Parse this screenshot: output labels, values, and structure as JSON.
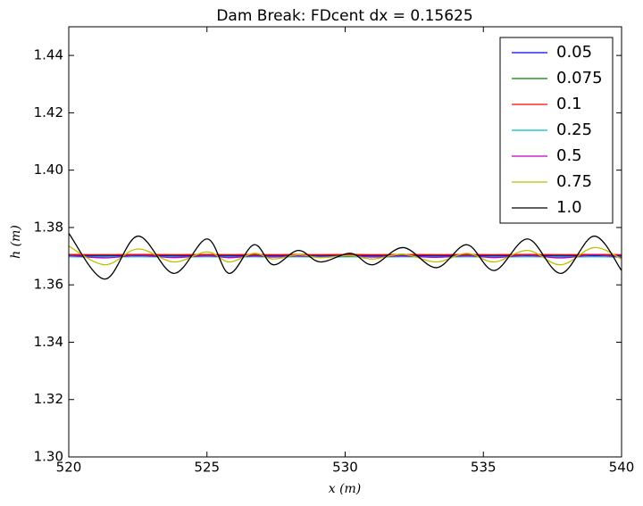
{
  "chart_data": {
    "type": "line",
    "title": "Dam Break: FDcent dx = 0.15625",
    "xlabel": "x (m)",
    "ylabel": "h (m)",
    "x": [
      520,
      521.3,
      522.5,
      523.8,
      525,
      525.8,
      526.7,
      527.4,
      528.3,
      529.1,
      530.2,
      531,
      532.1,
      533.3,
      534.4,
      535.4,
      536.6,
      537.8,
      539,
      540
    ],
    "series": [
      {
        "name": "0.05",
        "color": "#0000ff",
        "values": [
          1.3702,
          1.3701,
          1.3702,
          1.3701,
          1.3702,
          1.3701,
          1.3702,
          1.3701,
          1.3702,
          1.3701,
          1.3702,
          1.3701,
          1.3702,
          1.3701,
          1.3702,
          1.3701,
          1.3702,
          1.3701,
          1.3702,
          1.3701
        ]
      },
      {
        "name": "0.075",
        "color": "#008000",
        "values": [
          1.3705,
          1.3704,
          1.3705,
          1.3704,
          1.3705,
          1.3704,
          1.3705,
          1.3704,
          1.3705,
          1.3704,
          1.3705,
          1.3704,
          1.3705,
          1.3704,
          1.3705,
          1.3704,
          1.3705,
          1.3704,
          1.3705,
          1.3704
        ]
      },
      {
        "name": "0.1",
        "color": "#ff0000",
        "values": [
          1.3706,
          1.3705,
          1.3706,
          1.3705,
          1.3706,
          1.3705,
          1.3706,
          1.3705,
          1.3706,
          1.3705,
          1.3706,
          1.3705,
          1.3706,
          1.3705,
          1.3706,
          1.3705,
          1.3706,
          1.3705,
          1.3706,
          1.3705
        ]
      },
      {
        "name": "0.25",
        "color": "#00bfbf",
        "values": [
          1.3698,
          1.3697,
          1.3698,
          1.3697,
          1.3698,
          1.3697,
          1.3698,
          1.3697,
          1.3698,
          1.3697,
          1.3698,
          1.3697,
          1.3698,
          1.3697,
          1.3698,
          1.3697,
          1.3698,
          1.3697,
          1.3698,
          1.3697
        ]
      },
      {
        "name": "0.5",
        "color": "#bf00bf",
        "values": [
          1.3703,
          1.3694,
          1.3703,
          1.3695,
          1.3702,
          1.3695,
          1.3701,
          1.3697,
          1.3701,
          1.3697,
          1.3701,
          1.3697,
          1.3701,
          1.3696,
          1.3702,
          1.3695,
          1.3703,
          1.3694,
          1.3704,
          1.3696
        ]
      },
      {
        "name": "0.75",
        "color": "#bfbf00",
        "values": [
          1.3735,
          1.367,
          1.3725,
          1.368,
          1.3715,
          1.368,
          1.371,
          1.369,
          1.3705,
          1.3695,
          1.3702,
          1.369,
          1.3707,
          1.368,
          1.371,
          1.368,
          1.372,
          1.367,
          1.373,
          1.369
        ]
      },
      {
        "name": "1.0",
        "color": "#000000",
        "values": [
          1.378,
          1.362,
          1.377,
          1.364,
          1.376,
          1.364,
          1.374,
          1.367,
          1.372,
          1.368,
          1.371,
          1.367,
          1.373,
          1.366,
          1.374,
          1.365,
          1.376,
          1.364,
          1.377,
          1.365
        ]
      }
    ],
    "xlim": [
      520,
      540
    ],
    "ylim": [
      1.3,
      1.45
    ],
    "xticks": [
      520,
      525,
      530,
      535,
      540
    ],
    "yticks": [
      {
        "value": 1.3,
        "label": "1.30"
      },
      1.32,
      1.34,
      1.36,
      1.38,
      {
        "value": 1.4,
        "label": "1.40"
      },
      1.42,
      1.44
    ],
    "legend": "upper right"
  }
}
